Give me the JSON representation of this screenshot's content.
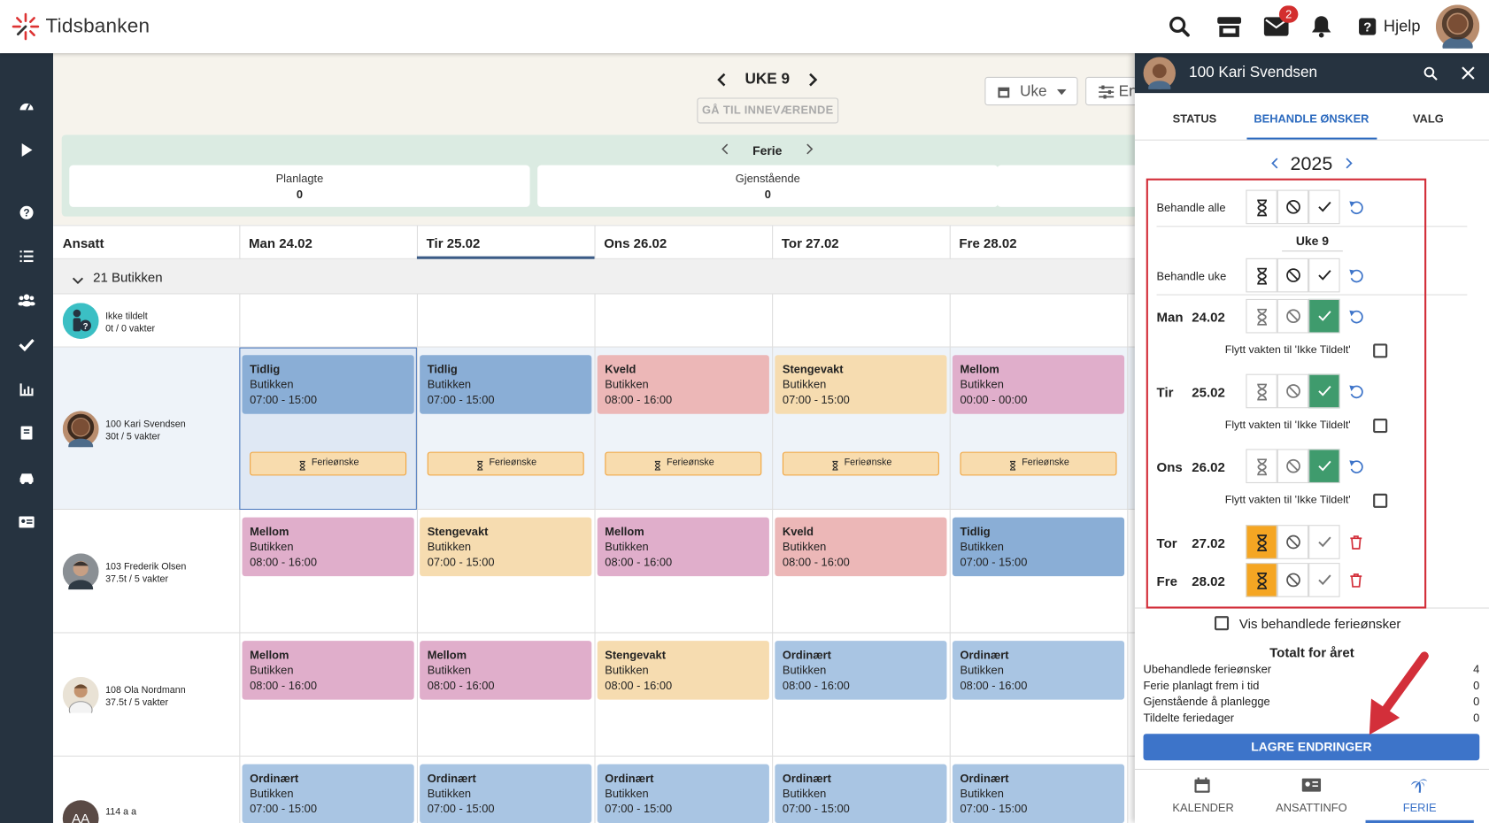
{
  "app": {
    "brand": "Tidsbanken",
    "mail_badge": 2,
    "help": "Hjelp"
  },
  "week": {
    "label": "UKE 9",
    "goto": "GÅ TIL INNEVÆRENDE",
    "view": "Uke",
    "filter": "En"
  },
  "summary": {
    "title": "Ferie",
    "cards": [
      {
        "label": "Planlagte",
        "value": 0
      },
      {
        "label": "Gjenstående",
        "value": 0
      }
    ]
  },
  "shift_colors": {
    "Tidlig": "#8aaed6",
    "Kveld": "#ecb7b7",
    "Stengevakt": "#f6dcb0",
    "Mellom": "#e0aecb",
    "Ordinært": "#a9c5e3"
  },
  "table": {
    "employee_header": "Ansatt",
    "days": [
      "Man 24.02",
      "Tir 25.02",
      "Ons 26.02",
      "Tor 27.02",
      "Fre 28.02"
    ],
    "group": "21 Butikken",
    "rows": [
      {
        "name": "Ikke tildelt",
        "hours": "0t / 0 vakter",
        "shifts": [
          null,
          null,
          null,
          null,
          null
        ]
      },
      {
        "name": "100 Kari Svendsen",
        "hours": "30t / 5 vakter",
        "shifts": [
          {
            "type": "Tidlig",
            "place": "Butikken",
            "time": "07:00 - 15:00",
            "request": "Ferieønske"
          },
          {
            "type": "Tidlig",
            "place": "Butikken",
            "time": "07:00 - 15:00",
            "request": "Ferieønske"
          },
          {
            "type": "Kveld",
            "place": "Butikken",
            "time": "08:00 - 16:00",
            "request": "Ferieønske"
          },
          {
            "type": "Stengevakt",
            "place": "Butikken",
            "time": "07:00 - 15:00",
            "request": "Ferieønske"
          },
          {
            "type": "Mellom",
            "place": "Butikken",
            "time": "00:00 - 00:00",
            "request": "Ferieønske"
          }
        ]
      },
      {
        "name": "103 Frederik Olsen",
        "hours": "37.5t / 5 vakter",
        "shifts": [
          {
            "type": "Mellom",
            "place": "Butikken",
            "time": "08:00 - 16:00"
          },
          {
            "type": "Stengevakt",
            "place": "Butikken",
            "time": "07:00 - 15:00"
          },
          {
            "type": "Mellom",
            "place": "Butikken",
            "time": "08:00 - 16:00"
          },
          {
            "type": "Kveld",
            "place": "Butikken",
            "time": "08:00 - 16:00"
          },
          {
            "type": "Tidlig",
            "place": "Butikken",
            "time": "07:00 - 15:00"
          }
        ]
      },
      {
        "name": "108 Ola Nordmann",
        "hours": "37.5t / 5 vakter",
        "shifts": [
          {
            "type": "Mellom",
            "place": "Butikken",
            "time": "08:00 - 16:00"
          },
          {
            "type": "Mellom",
            "place": "Butikken",
            "time": "08:00 - 16:00"
          },
          {
            "type": "Stengevakt",
            "place": "Butikken",
            "time": "08:00 - 16:00"
          },
          {
            "type": "Ordinært",
            "place": "Butikken",
            "time": "08:00 - 16:00"
          },
          {
            "type": "Ordinært",
            "place": "Butikken",
            "time": "08:00 - 16:00"
          }
        ]
      },
      {
        "name": "114 a a",
        "initials": "AA",
        "shifts": [
          {
            "type": "Ordinært",
            "place": "Butikken",
            "time": "07:00 - 15:00"
          },
          {
            "type": "Ordinært",
            "place": "Butikken",
            "time": "07:00 - 15:00"
          },
          {
            "type": "Ordinært",
            "place": "Butikken",
            "time": "07:00 - 15:00"
          },
          {
            "type": "Ordinært",
            "place": "Butikken",
            "time": "07:00 - 15:00"
          },
          {
            "type": "Ordinært",
            "place": "Butikken",
            "time": "07:00 - 15:00"
          }
        ]
      }
    ]
  },
  "panel": {
    "user": "100 Kari Svendsen",
    "tabs": [
      "STATUS",
      "BEHANDLE ØNSKER",
      "VALG"
    ],
    "year": 2025,
    "all_label": "Behandle alle",
    "week_label": "Uke 9",
    "week_action": "Behandle uke",
    "days": [
      {
        "dow": "Man",
        "date": "24.02",
        "status": "approved",
        "move": "Flytt vakten til 'Ikke Tildelt'"
      },
      {
        "dow": "Tir",
        "date": "25.02",
        "status": "approved",
        "move": "Flytt vakten til 'Ikke Tildelt'"
      },
      {
        "dow": "Ons",
        "date": "26.02",
        "status": "approved",
        "move": "Flytt vakten til 'Ikke Tildelt'"
      },
      {
        "dow": "Tor",
        "date": "27.02",
        "status": "pending"
      },
      {
        "dow": "Fre",
        "date": "28.02",
        "status": "pending"
      }
    ],
    "show_processed": "Vis behandlede ferieønsker",
    "totals_title": "Totalt for året",
    "totals": [
      {
        "label": "Ubehandlede ferieønsker",
        "value": 4
      },
      {
        "label": "Ferie planlagt frem i tid",
        "value": 0
      },
      {
        "label": "Gjenstående å planlegge",
        "value": 0
      },
      {
        "label": "Tildelte feriedager",
        "value": 0
      }
    ],
    "save": "LAGRE ENDRINGER",
    "bottom_tabs": [
      "KALENDER",
      "ANSATTINFO",
      "FERIE"
    ]
  }
}
